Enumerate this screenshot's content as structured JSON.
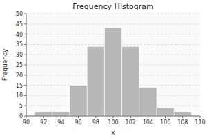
{
  "chart_data": {
    "type": "histogram",
    "title": "Frequency Histogram",
    "xlabel": "x",
    "ylabel": "Frequency",
    "bins": [
      91,
      93,
      95,
      97,
      99,
      101,
      103,
      105,
      107,
      109
    ],
    "values": [
      2,
      2,
      15,
      34,
      43,
      34,
      14,
      4,
      2
    ],
    "color": "#b8b8b8",
    "xlim": [
      90,
      110
    ],
    "xticks": [
      90,
      92,
      94,
      96,
      98,
      100,
      102,
      104,
      106,
      108,
      110
    ],
    "ylim": [
      0,
      50
    ],
    "yticks": [
      0,
      5,
      10,
      15,
      20,
      25,
      30,
      35,
      40,
      45,
      50
    ],
    "grid": true
  }
}
